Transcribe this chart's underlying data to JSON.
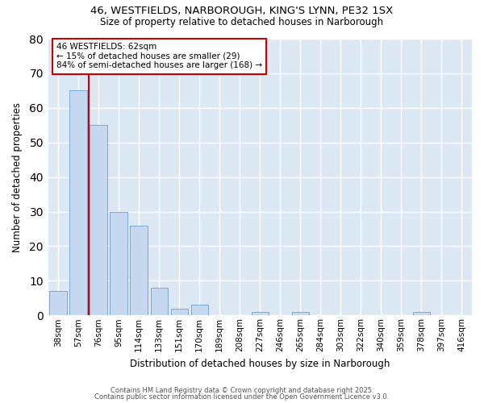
{
  "title": "46, WESTFIELDS, NARBOROUGH, KING'S LYNN, PE32 1SX",
  "subtitle": "Size of property relative to detached houses in Narborough",
  "xlabel": "Distribution of detached houses by size in Narborough",
  "ylabel": "Number of detached properties",
  "bar_labels": [
    "38sqm",
    "57sqm",
    "76sqm",
    "95sqm",
    "114sqm",
    "133sqm",
    "151sqm",
    "170sqm",
    "189sqm",
    "208sqm",
    "227sqm",
    "246sqm",
    "265sqm",
    "284sqm",
    "303sqm",
    "322sqm",
    "340sqm",
    "359sqm",
    "378sqm",
    "397sqm",
    "416sqm"
  ],
  "bar_values": [
    7,
    65,
    55,
    30,
    26,
    8,
    2,
    3,
    0,
    0,
    1,
    0,
    1,
    0,
    0,
    0,
    0,
    0,
    1,
    0,
    0
  ],
  "bar_color": "#c5d8f0",
  "bar_edge_color": "#7aaad4",
  "red_line_x": 1.5,
  "annotation_text": "46 WESTFIELDS: 62sqm\n← 15% of detached houses are smaller (29)\n84% of semi-detached houses are larger (168) →",
  "annotation_box_color": "#ffffff",
  "annotation_box_edge": "#cc0000",
  "ylim": [
    0,
    80
  ],
  "yticks": [
    0,
    10,
    20,
    30,
    40,
    50,
    60,
    70,
    80
  ],
  "background_color": "#dde8f5",
  "grid_color": "#ffffff",
  "fig_background": "#ffffff",
  "footer_line1": "Contains HM Land Registry data © Crown copyright and database right 2025.",
  "footer_line2": "Contains public sector information licensed under the Open Government Licence v3.0."
}
